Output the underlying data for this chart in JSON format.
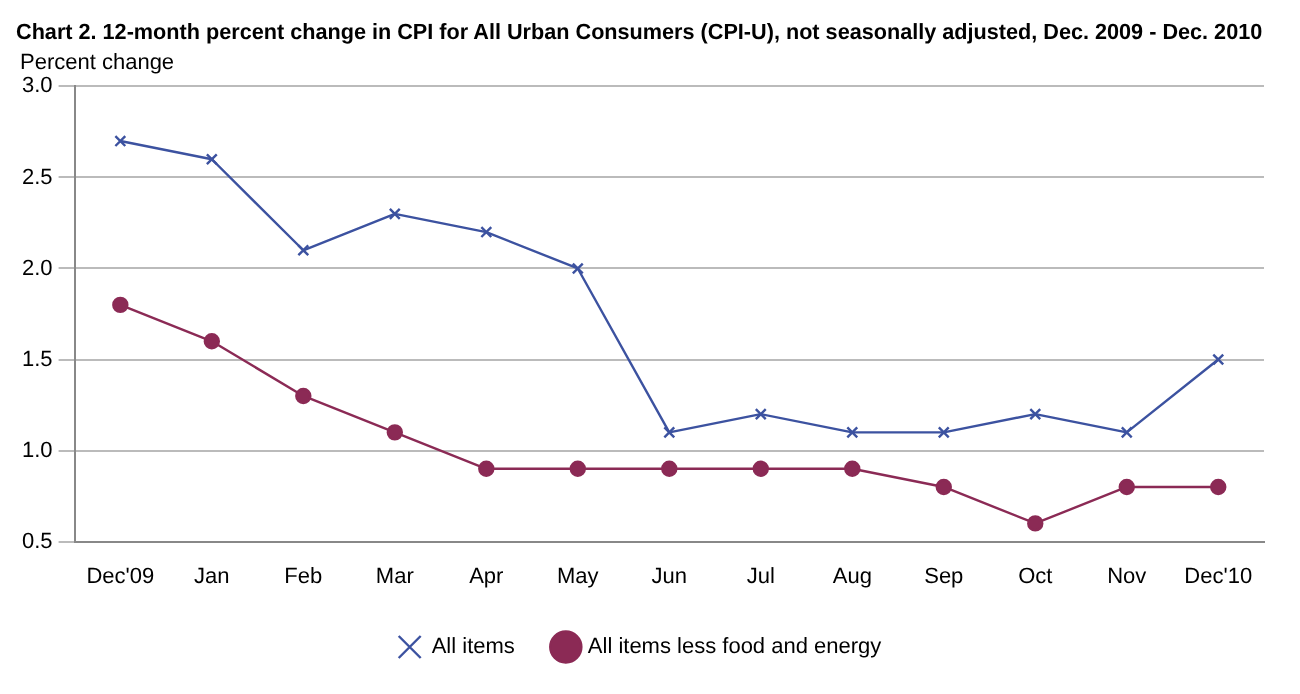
{
  "chart_data": {
    "type": "line",
    "title": "Chart 2. 12-month percent change in CPI for All Urban Consumers (CPI-U), not seasonally adjusted, Dec. 2009 - Dec. 2010",
    "ylabel": "Percent change",
    "categories": [
      "Dec'09",
      "Jan",
      "Feb",
      "Mar",
      "Apr",
      "May",
      "Jun",
      "Jul",
      "Aug",
      "Sep",
      "Oct",
      "Nov",
      "Dec'10"
    ],
    "series": [
      {
        "name": "All items",
        "color": "#3c52a0",
        "marker": "cross",
        "values": [
          2.7,
          2.6,
          2.1,
          2.3,
          2.2,
          2.0,
          1.1,
          1.2,
          1.1,
          1.1,
          1.2,
          1.1,
          1.5
        ]
      },
      {
        "name": "All items less food and energy",
        "color": "#8b2a55",
        "marker": "circle",
        "values": [
          1.8,
          1.6,
          1.3,
          1.1,
          0.9,
          0.9,
          0.9,
          0.9,
          0.9,
          0.8,
          0.6,
          0.8,
          0.8
        ]
      }
    ],
    "ylim": [
      0.5,
      3.0
    ],
    "yticks": [
      0.5,
      {
        "value": 1,
        "label": "1.0"
      },
      1.5,
      {
        "value": 2,
        "label": "2.0"
      },
      2.5,
      {
        "value": 3,
        "label": "3.0"
      }
    ],
    "grid": "y",
    "legend": "bottom",
    "line_style": "solid"
  }
}
